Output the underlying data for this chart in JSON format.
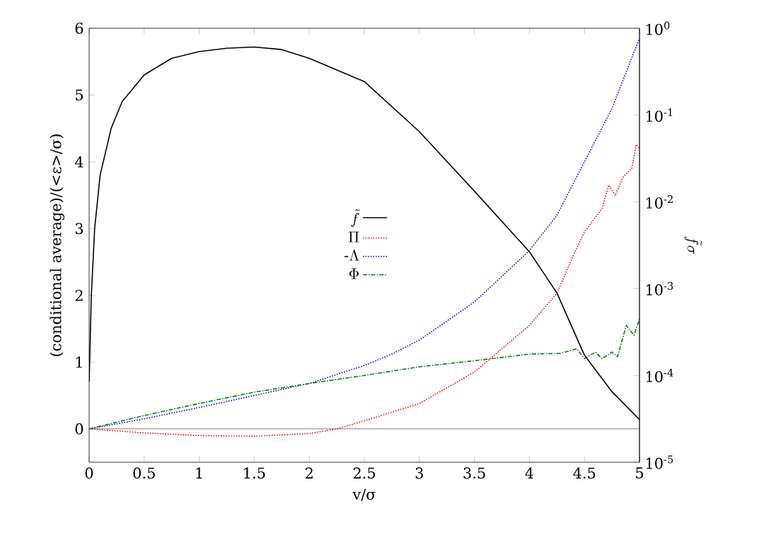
{
  "chart_data": {
    "type": "line",
    "xlabel": "v/σ",
    "ylabel": "(conditional average)/(<ε>/σ)",
    "y2label": "\\tilde{f}\\sigma",
    "xlim": [
      0,
      5
    ],
    "xticks": [
      0,
      0.5,
      1,
      1.5,
      2,
      2.5,
      3,
      3.5,
      4,
      4.5,
      5
    ],
    "ylim": [
      -0.5,
      6
    ],
    "yticks": [
      0,
      1,
      2,
      3,
      4,
      5,
      6
    ],
    "y2lim": [
      1e-05,
      1
    ],
    "y2ticks": [
      {
        "value": 1e-05,
        "label": "10$^{-5}$"
      },
      {
        "value": 0.0001,
        "label": "10$^{-4}$"
      },
      {
        "value": 0.001,
        "label": "10$^{-3}$"
      },
      {
        "value": 0.01,
        "label": "10$^{-2}$"
      },
      {
        "value": 0.1,
        "label": "10$^{-1}$"
      },
      {
        "value": 1,
        "label": "10$^{0}$"
      }
    ],
    "log": "y2",
    "legend": "center",
    "ref_lines": [
      {
        "axis": "y",
        "value": 0,
        "color": "#808080"
      }
    ],
    "series": [
      {
        "name": "\\tilde{f}",
        "color": "#000000",
        "axis": "y2",
        "line_style": "solid",
        "x": [
          0,
          0.02,
          0.05,
          0.1,
          0.2,
          0.3,
          0.5,
          0.75,
          1,
          1.25,
          1.5,
          1.75,
          2,
          2.5,
          3,
          3.5,
          4,
          4.25,
          4.5,
          4.75,
          5
        ],
        "values": [
          8.4e-05,
          0.00084,
          0.0049,
          0.0204,
          0.0703,
          0.143,
          0.29,
          0.451,
          0.538,
          0.588,
          0.609,
          0.568,
          0.451,
          0.243,
          0.0644,
          0.0133,
          0.00266,
          0.00089,
          0.000171,
          6.5e-05,
          3.1e-05
        ]
      },
      {
        "name": "\\Pi",
        "color": "#ff0000",
        "line_style": "dotted",
        "x": [
          0,
          0.5,
          1,
          1.5,
          2,
          2.25,
          2.5,
          3,
          3.5,
          4,
          4.25,
          4.4,
          4.5,
          4.66,
          4.72,
          4.78,
          4.85,
          4.93,
          4.97,
          5
        ],
        "values": [
          0,
          -0.06,
          -0.1,
          -0.11,
          -0.07,
          0,
          0.12,
          0.38,
          0.85,
          1.55,
          2.03,
          2.6,
          2.95,
          3.3,
          3.65,
          3.5,
          3.77,
          3.9,
          4.26,
          4.2
        ]
      },
      {
        "name": "\\mbox{-}\\Lambda",
        "color": "#0000ff",
        "line_style": "dotted",
        "x": [
          0,
          0.5,
          1,
          1.5,
          2,
          2.5,
          2.75,
          3,
          3.5,
          4,
          4.25,
          4.5,
          4.75,
          5
        ],
        "values": [
          0,
          0.15,
          0.32,
          0.5,
          0.68,
          0.95,
          1.12,
          1.33,
          1.9,
          2.67,
          3.2,
          4.0,
          4.8,
          5.85
        ]
      },
      {
        "name": "\\Phi",
        "color": "#007f00",
        "line_style": "dashdot",
        "x": [
          0,
          0.5,
          1,
          1.5,
          2,
          2.5,
          3,
          3.5,
          4,
          4.28,
          4.43,
          4.5,
          4.6,
          4.66,
          4.75,
          4.8,
          4.88,
          4.95,
          5
        ],
        "values": [
          0,
          0.2,
          0.38,
          0.55,
          0.68,
          0.8,
          0.93,
          1.02,
          1.12,
          1.13,
          1.2,
          1.05,
          1.15,
          1.05,
          1.15,
          1.08,
          1.55,
          1.4,
          1.65
        ]
      }
    ]
  }
}
